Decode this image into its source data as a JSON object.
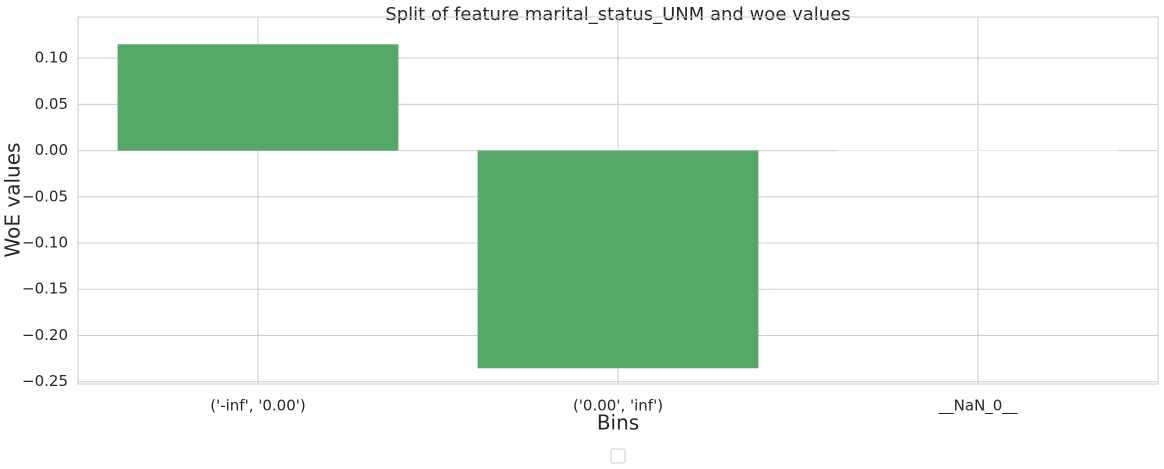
{
  "chart_data": {
    "type": "bar",
    "title": "Split of feature marital_status_UNM and woe values",
    "x_label": "Bins",
    "y_label": "WoE values",
    "categories": [
      "('-inf', '0.00')",
      "('0.00', 'inf')",
      "__NaN_0__"
    ],
    "values": [
      0.115,
      -0.2355,
      0
    ],
    "colors": [
      "#55a868",
      "#55a868",
      "#ffffff"
    ],
    "ylim": [
      -0.2525,
      0.1445
    ],
    "yticks": [
      {
        "value": -0.25,
        "label": "−0.25"
      },
      {
        "value": -0.2,
        "label": "−0.20"
      },
      {
        "value": -0.15,
        "label": "−0.15"
      },
      {
        "value": -0.1,
        "label": "−0.10"
      },
      {
        "value": -0.05,
        "label": "−0.05"
      },
      {
        "value": 0,
        "label": "0.00"
      },
      {
        "value": 0.05,
        "label": "0.05"
      },
      {
        "value": 0.1,
        "label": "0.10"
      }
    ],
    "grid": true
  }
}
